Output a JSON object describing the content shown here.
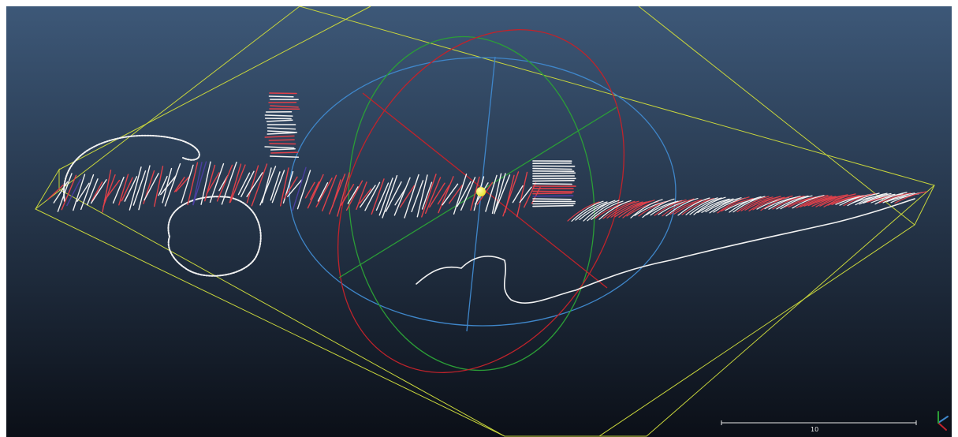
{
  "viewer": {
    "scale_bar_label": "10",
    "colors": {
      "background_top": "#3d5878",
      "background_bottom": "#0b0f17",
      "bounding_box": "#c9d63c",
      "gizmo_x": "#c0232b",
      "gizmo_y": "#2b9e37",
      "gizmo_z": "#3f86c9",
      "pivot": "#e8e32a",
      "point_white": "#f2f2f2",
      "point_red": "#e0414a",
      "point_blue": "#4b3fa0"
    },
    "icons": [
      "trihedron-axis-icon",
      "pivot-point-icon"
    ]
  }
}
